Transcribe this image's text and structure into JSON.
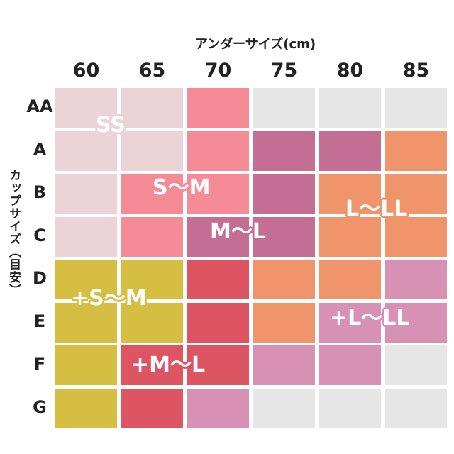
{
  "chart_data": {
    "type": "heatmap",
    "xlabel": "アンダーサイズ(cm)",
    "ylabel": "カップサイズ（目安）",
    "columns": [
      "60",
      "65",
      "70",
      "75",
      "80",
      "85"
    ],
    "rows": [
      "AA",
      "A",
      "B",
      "C",
      "D",
      "E",
      "F",
      "G"
    ],
    "legend_colors": {
      "SS": "#ebd3d8",
      "S~M": "#f48b96",
      "M~L": "#c56e93",
      "L~LL": "#ef946b",
      "+S~M": "#d6be43",
      "+M~L": "#dd5462",
      "+L~LL": "#d791b5",
      "none": "#e6e6e6"
    },
    "cells": [
      [
        "SS",
        "SS",
        "S~M",
        "none",
        "none",
        "none"
      ],
      [
        "SS",
        "SS",
        "S~M",
        "M~L",
        "M~L",
        "L~LL"
      ],
      [
        "SS",
        "S~M",
        "S~M",
        "M~L",
        "L~LL",
        "L~LL"
      ],
      [
        "SS",
        "S~M",
        "M~L",
        "M~L",
        "L~LL",
        "L~LL"
      ],
      [
        "+S~M",
        "+S~M",
        "+M~L",
        "L~LL",
        "L~LL",
        "+L~LL"
      ],
      [
        "+S~M",
        "+S~M",
        "+M~L",
        "L~LL",
        "+L~LL",
        "+L~LL"
      ],
      [
        "+S~M",
        "+M~L",
        "+M~L",
        "+L~LL",
        "+L~LL",
        "none"
      ],
      [
        "+S~M",
        "+M~L",
        "+L~LL",
        "none",
        "none",
        "none"
      ]
    ],
    "labels": [
      {
        "text": "SS",
        "key": "SS"
      },
      {
        "text": "S〜M",
        "key": "S~M"
      },
      {
        "text": "M〜L",
        "key": "M~L"
      },
      {
        "text": "L〜LL",
        "key": "L~LL"
      },
      {
        "text": "+S〜M",
        "key": "+S~M"
      },
      {
        "text": "+L〜LL",
        "key": "+L~LL"
      },
      {
        "text": "+M〜L",
        "key": "+M~L"
      }
    ]
  }
}
